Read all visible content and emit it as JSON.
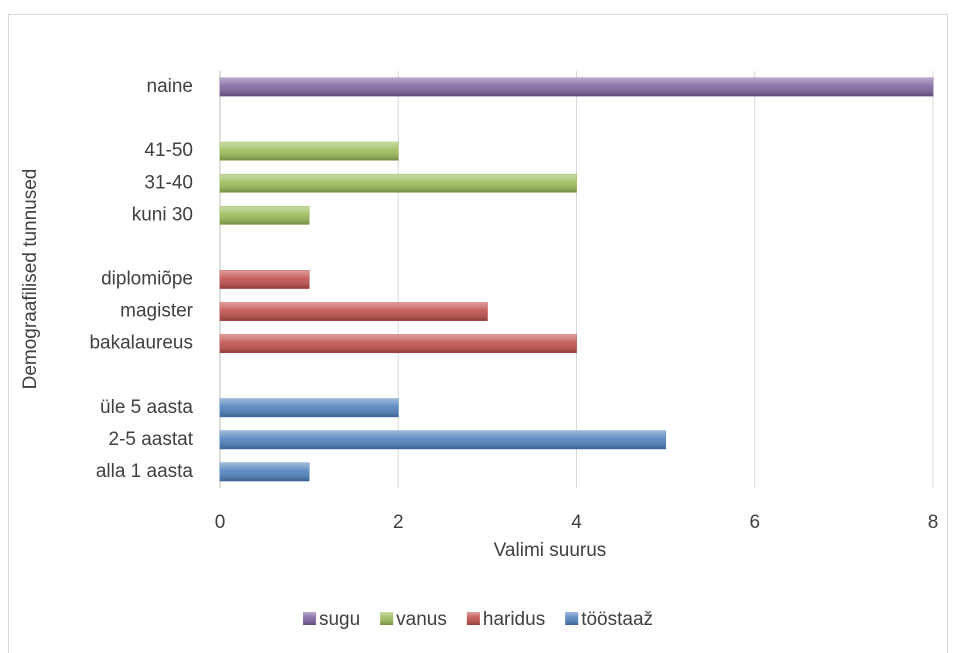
{
  "chart_data": {
    "type": "bar",
    "orientation": "horizontal",
    "xlabel": "Valimi suurus",
    "ylabel": "Demograafilised tunnused",
    "categories": [
      "alla 1 aasta",
      "2-5 aastat",
      "üle 5 aasta",
      null,
      "bakalaureus",
      "magister",
      "diplomiõpe",
      null,
      "kuni 30",
      "31-40",
      "41-50",
      null,
      "naine"
    ],
    "series": [
      {
        "name": "sugu",
        "color": "#8064a2",
        "values": [
          null,
          null,
          null,
          null,
          null,
          null,
          null,
          null,
          null,
          null,
          null,
          null,
          8
        ]
      },
      {
        "name": "vanus",
        "color": "#9bbb59",
        "values": [
          null,
          null,
          null,
          null,
          null,
          null,
          null,
          null,
          1,
          4,
          2,
          null,
          null
        ]
      },
      {
        "name": "haridus",
        "color": "#c0504d",
        "values": [
          null,
          null,
          null,
          null,
          4,
          3,
          1,
          null,
          null,
          null,
          null,
          null,
          null
        ]
      },
      {
        "name": "tööstaaž",
        "color": "#4f81bd",
        "values": [
          1,
          5,
          2,
          null,
          null,
          null,
          null,
          null,
          null,
          null,
          null,
          null,
          null
        ]
      }
    ],
    "xlim": [
      0,
      8
    ],
    "xticks": [
      0,
      2,
      4,
      6,
      8
    ],
    "grid": true,
    "legend": "bottom"
  }
}
